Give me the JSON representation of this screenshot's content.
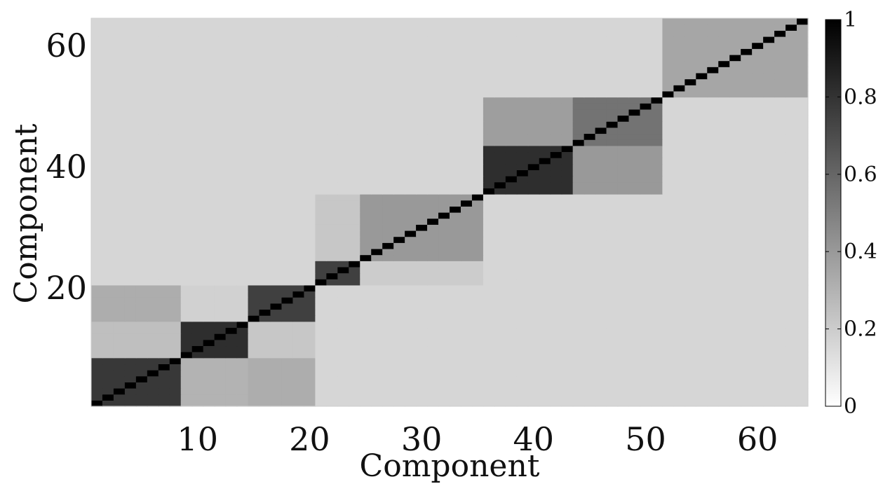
{
  "chart_data": {
    "type": "heatmap",
    "title": "",
    "xlabel": "Component",
    "ylabel": "Component",
    "x_range": [
      1,
      64
    ],
    "y_range": [
      1,
      64
    ],
    "x_ticks": [
      "10",
      "20",
      "30",
      "40",
      "50",
      "60"
    ],
    "y_ticks": [
      "20",
      "40",
      "60"
    ],
    "colorbar": {
      "min": 0,
      "max": 1,
      "ticks": [
        "0",
        "0.2",
        "0.4",
        "0.6",
        "0.8",
        "1"
      ],
      "colormap": "gray_reversed",
      "low_color": "#ffffff",
      "high_color": "#000000"
    },
    "background_value": 0.16,
    "diagonal_value": 1.0,
    "blocks": [
      {
        "rows": [
          1,
          8
        ],
        "cols": [
          1,
          8
        ],
        "value": 0.78
      },
      {
        "rows": [
          1,
          8
        ],
        "cols": [
          9,
          14
        ],
        "value": 0.3
      },
      {
        "rows": [
          1,
          8
        ],
        "cols": [
          15,
          20
        ],
        "value": 0.32
      },
      {
        "rows": [
          9,
          14
        ],
        "cols": [
          1,
          8
        ],
        "value": 0.25
      },
      {
        "rows": [
          9,
          14
        ],
        "cols": [
          9,
          14
        ],
        "value": 0.82
      },
      {
        "rows": [
          9,
          14
        ],
        "cols": [
          15,
          20
        ],
        "value": 0.22
      },
      {
        "rows": [
          15,
          20
        ],
        "cols": [
          1,
          8
        ],
        "value": 0.32
      },
      {
        "rows": [
          15,
          20
        ],
        "cols": [
          9,
          14
        ],
        "value": 0.18
      },
      {
        "rows": [
          15,
          20
        ],
        "cols": [
          15,
          20
        ],
        "value": 0.75
      },
      {
        "rows": [
          21,
          24
        ],
        "cols": [
          21,
          24
        ],
        "value": 0.75
      },
      {
        "rows": [
          21,
          24
        ],
        "cols": [
          25,
          35
        ],
        "value": 0.2
      },
      {
        "rows": [
          25,
          35
        ],
        "cols": [
          21,
          24
        ],
        "value": 0.22
      },
      {
        "rows": [
          25,
          35
        ],
        "cols": [
          25,
          35
        ],
        "value": 0.4
      },
      {
        "rows": [
          36,
          43
        ],
        "cols": [
          36,
          43
        ],
        "value": 0.82
      },
      {
        "rows": [
          36,
          43
        ],
        "cols": [
          44,
          51
        ],
        "value": 0.4
      },
      {
        "rows": [
          44,
          51
        ],
        "cols": [
          36,
          43
        ],
        "value": 0.38
      },
      {
        "rows": [
          44,
          51
        ],
        "cols": [
          44,
          51
        ],
        "value": 0.55
      },
      {
        "rows": [
          52,
          64
        ],
        "cols": [
          52,
          64
        ],
        "value": 0.35
      }
    ]
  }
}
